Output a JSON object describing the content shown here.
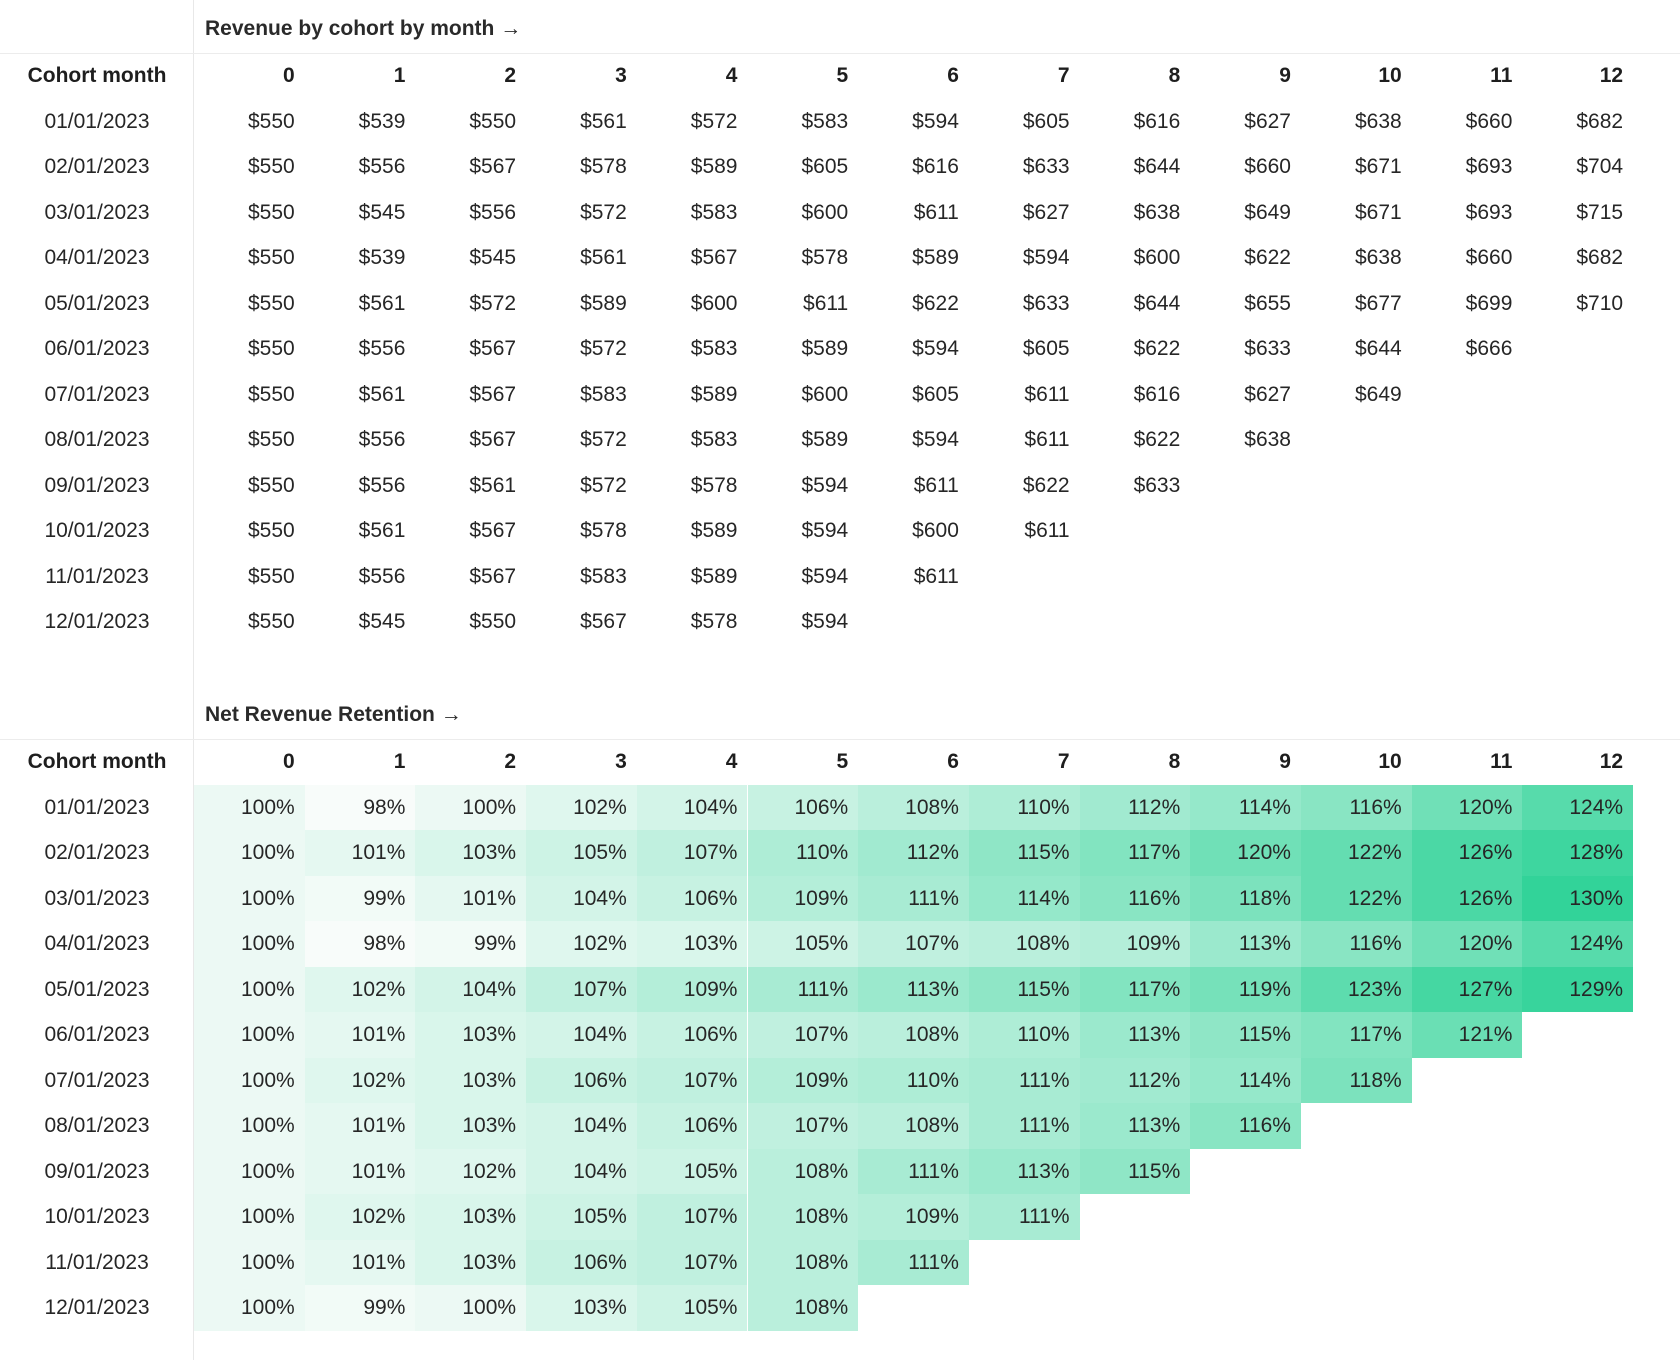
{
  "revenue": {
    "title": "Revenue by cohort by month →",
    "row_header": "Cohort month",
    "columns": [
      "0",
      "1",
      "2",
      "3",
      "4",
      "5",
      "6",
      "7",
      "8",
      "9",
      "10",
      "11",
      "12"
    ],
    "rows": [
      {
        "cohort": "01/01/2023",
        "values": [
          "$550",
          "$539",
          "$550",
          "$561",
          "$572",
          "$583",
          "$594",
          "$605",
          "$616",
          "$627",
          "$638",
          "$660",
          "$682"
        ]
      },
      {
        "cohort": "02/01/2023",
        "values": [
          "$550",
          "$556",
          "$567",
          "$578",
          "$589",
          "$605",
          "$616",
          "$633",
          "$644",
          "$660",
          "$671",
          "$693",
          "$704"
        ]
      },
      {
        "cohort": "03/01/2023",
        "values": [
          "$550",
          "$545",
          "$556",
          "$572",
          "$583",
          "$600",
          "$611",
          "$627",
          "$638",
          "$649",
          "$671",
          "$693",
          "$715"
        ]
      },
      {
        "cohort": "04/01/2023",
        "values": [
          "$550",
          "$539",
          "$545",
          "$561",
          "$567",
          "$578",
          "$589",
          "$594",
          "$600",
          "$622",
          "$638",
          "$660",
          "$682"
        ]
      },
      {
        "cohort": "05/01/2023",
        "values": [
          "$550",
          "$561",
          "$572",
          "$589",
          "$600",
          "$611",
          "$622",
          "$633",
          "$644",
          "$655",
          "$677",
          "$699",
          "$710"
        ]
      },
      {
        "cohort": "06/01/2023",
        "values": [
          "$550",
          "$556",
          "$567",
          "$572",
          "$583",
          "$589",
          "$594",
          "$605",
          "$622",
          "$633",
          "$644",
          "$666"
        ]
      },
      {
        "cohort": "07/01/2023",
        "values": [
          "$550",
          "$561",
          "$567",
          "$583",
          "$589",
          "$600",
          "$605",
          "$611",
          "$616",
          "$627",
          "$649"
        ]
      },
      {
        "cohort": "08/01/2023",
        "values": [
          "$550",
          "$556",
          "$567",
          "$572",
          "$583",
          "$589",
          "$594",
          "$611",
          "$622",
          "$638"
        ]
      },
      {
        "cohort": "09/01/2023",
        "values": [
          "$550",
          "$556",
          "$561",
          "$572",
          "$578",
          "$594",
          "$611",
          "$622",
          "$633"
        ]
      },
      {
        "cohort": "10/01/2023",
        "values": [
          "$550",
          "$561",
          "$567",
          "$578",
          "$589",
          "$594",
          "$600",
          "$611"
        ]
      },
      {
        "cohort": "11/01/2023",
        "values": [
          "$550",
          "$556",
          "$567",
          "$583",
          "$589",
          "$594",
          "$611"
        ]
      },
      {
        "cohort": "12/01/2023",
        "values": [
          "$550",
          "$545",
          "$550",
          "$567",
          "$578",
          "$594"
        ]
      }
    ]
  },
  "nrr": {
    "title": "Net Revenue Retention →",
    "row_header": "Cohort month",
    "columns": [
      "0",
      "1",
      "2",
      "3",
      "4",
      "5",
      "6",
      "7",
      "8",
      "9",
      "10",
      "11",
      "12"
    ],
    "heat_low_color": "#f8fcfa",
    "heat_high_color": "#32d399",
    "heat_min": 98,
    "heat_max": 130,
    "rows": [
      {
        "cohort": "01/01/2023",
        "values": [
          "100%",
          "98%",
          "100%",
          "102%",
          "104%",
          "106%",
          "108%",
          "110%",
          "112%",
          "114%",
          "116%",
          "120%",
          "124%"
        ]
      },
      {
        "cohort": "02/01/2023",
        "values": [
          "100%",
          "101%",
          "103%",
          "105%",
          "107%",
          "110%",
          "112%",
          "115%",
          "117%",
          "120%",
          "122%",
          "126%",
          "128%"
        ]
      },
      {
        "cohort": "03/01/2023",
        "values": [
          "100%",
          "99%",
          "101%",
          "104%",
          "106%",
          "109%",
          "111%",
          "114%",
          "116%",
          "118%",
          "122%",
          "126%",
          "130%"
        ]
      },
      {
        "cohort": "04/01/2023",
        "values": [
          "100%",
          "98%",
          "99%",
          "102%",
          "103%",
          "105%",
          "107%",
          "108%",
          "109%",
          "113%",
          "116%",
          "120%",
          "124%"
        ]
      },
      {
        "cohort": "05/01/2023",
        "values": [
          "100%",
          "102%",
          "104%",
          "107%",
          "109%",
          "111%",
          "113%",
          "115%",
          "117%",
          "119%",
          "123%",
          "127%",
          "129%"
        ]
      },
      {
        "cohort": "06/01/2023",
        "values": [
          "100%",
          "101%",
          "103%",
          "104%",
          "106%",
          "107%",
          "108%",
          "110%",
          "113%",
          "115%",
          "117%",
          "121%"
        ]
      },
      {
        "cohort": "07/01/2023",
        "values": [
          "100%",
          "102%",
          "103%",
          "106%",
          "107%",
          "109%",
          "110%",
          "111%",
          "112%",
          "114%",
          "118%"
        ]
      },
      {
        "cohort": "08/01/2023",
        "values": [
          "100%",
          "101%",
          "103%",
          "104%",
          "106%",
          "107%",
          "108%",
          "111%",
          "113%",
          "116%"
        ]
      },
      {
        "cohort": "09/01/2023",
        "values": [
          "100%",
          "101%",
          "102%",
          "104%",
          "105%",
          "108%",
          "111%",
          "113%",
          "115%"
        ]
      },
      {
        "cohort": "10/01/2023",
        "values": [
          "100%",
          "102%",
          "103%",
          "105%",
          "107%",
          "108%",
          "109%",
          "111%"
        ]
      },
      {
        "cohort": "11/01/2023",
        "values": [
          "100%",
          "101%",
          "103%",
          "106%",
          "107%",
          "108%",
          "111%"
        ]
      },
      {
        "cohort": "12/01/2023",
        "values": [
          "100%",
          "99%",
          "100%",
          "103%",
          "105%",
          "108%"
        ]
      }
    ]
  }
}
